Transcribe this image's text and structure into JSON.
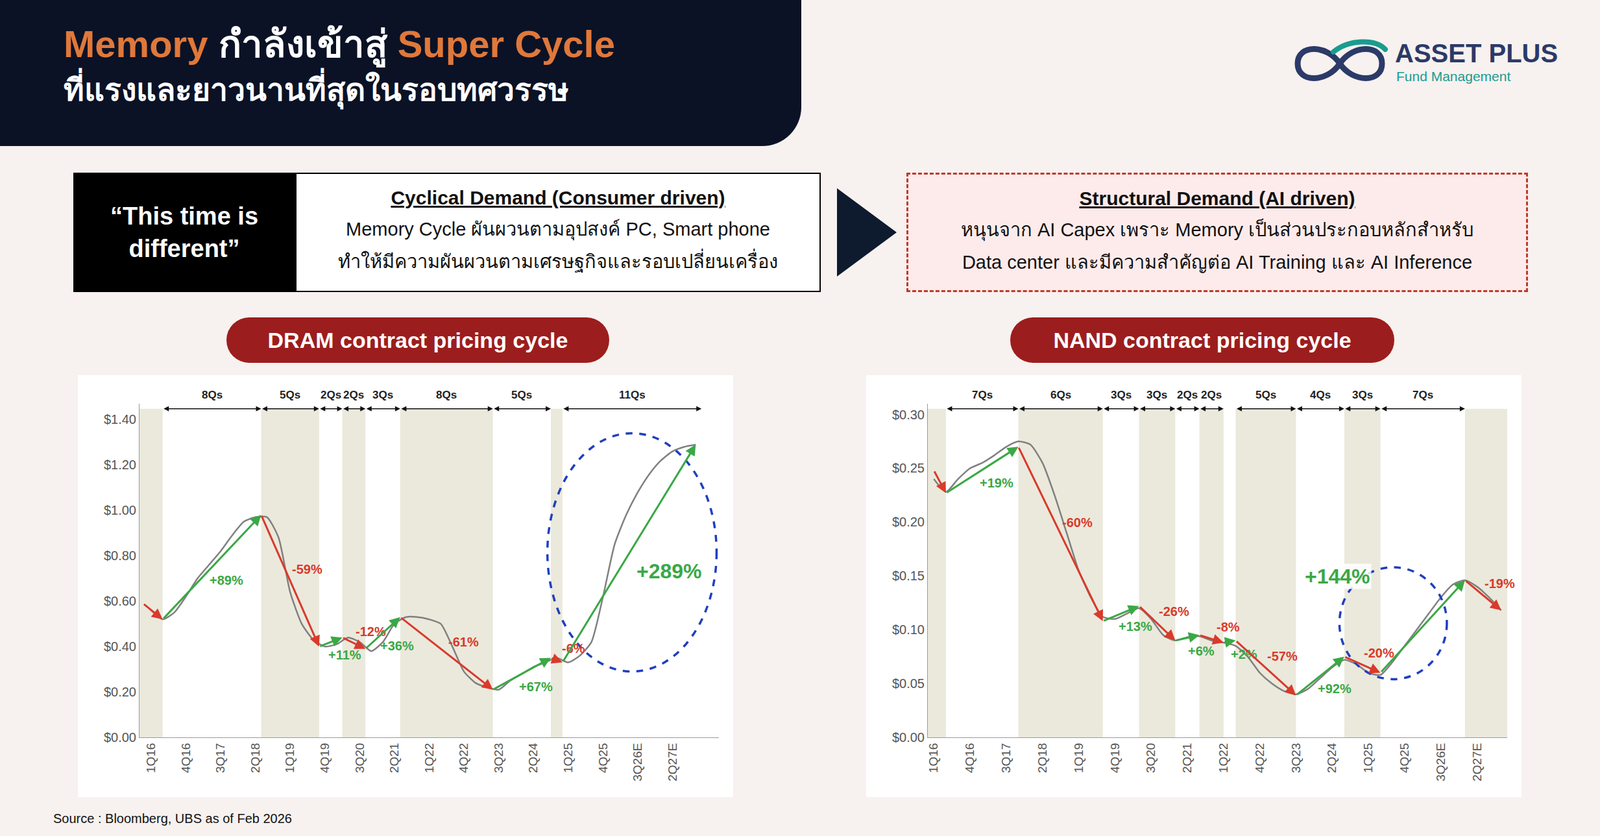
{
  "header": {
    "title_highlight_1": "Memory",
    "title_middle": "กำลังเข้าสู่",
    "title_highlight_2": "Super Cycle",
    "subtitle": "ที่แรงและยาวนานที่สุดในรอบทศวรรษ"
  },
  "logo": {
    "name": "ASSET PLUS",
    "tagline": "Fund Management"
  },
  "comparison": {
    "quote": "“This time is different”",
    "before": {
      "heading": "Cyclical Demand (Consumer driven)",
      "lines": [
        "Memory Cycle ผันผวนตามอุปสงค์ PC, Smart phone",
        "ทำให้มีความผันผวนตามเศรษฐกิจและรอบเปลี่ยนเครื่อง"
      ]
    },
    "after": {
      "heading": "Structural Demand (AI driven)",
      "lines": [
        "หนุนจาก AI Capex เพราะ Memory เป็นส่วนประกอบหลักสำหรับ",
        "Data center และมีความสำคัญต่อ AI Training และ AI Inference"
      ]
    }
  },
  "source": "Source : Bloomberg, UBS as of Feb 2026",
  "chart_data": [
    {
      "type": "line",
      "title": "DRAM contract pricing cycle",
      "categories": [
        "1Q16",
        null,
        null,
        "4Q16",
        null,
        null,
        "3Q17",
        null,
        null,
        "2Q18",
        null,
        null,
        "1Q19",
        null,
        null,
        "4Q19",
        null,
        null,
        "3Q20",
        null,
        null,
        "2Q21",
        null,
        null,
        "1Q22",
        null,
        null,
        "4Q22",
        null,
        null,
        "3Q23",
        null,
        null,
        "2Q24",
        null,
        null,
        "1Q25",
        null,
        null,
        "4Q25",
        null,
        null,
        "3Q26E",
        null,
        null,
        "2Q27E",
        null,
        null
      ],
      "series": [
        {
          "color": "#808080",
          "values": [
            0.56,
            0.52,
            0.55,
            0.62,
            0.7,
            0.76,
            0.82,
            0.89,
            0.95,
            0.97,
            0.97,
            0.88,
            0.64,
            0.5,
            0.43,
            0.4,
            0.41,
            0.44,
            0.42,
            0.38,
            0.42,
            0.5,
            0.53,
            0.53,
            0.52,
            0.5,
            0.4,
            0.29,
            0.24,
            0.22,
            0.21,
            0.25,
            0.28,
            0.31,
            0.33,
            0.35,
            0.33,
            0.36,
            0.42,
            0.62,
            0.85,
            0.98,
            1.08,
            1.16,
            1.22,
            1.26,
            1.28,
            1.29
          ]
        }
      ],
      "xlim": [
        -1,
        49
      ],
      "ylim": [
        0,
        1.47
      ],
      "yticks": [
        {
          "value": 0,
          "label": "$0.00"
        },
        {
          "value": 0.2,
          "label": "$0.20"
        },
        {
          "value": 0.4,
          "label": "$0.40"
        },
        {
          "value": 0.6,
          "label": "$0.60"
        },
        {
          "value": 0.8,
          "label": "$0.80"
        },
        {
          "value": 1.0,
          "label": "$1.00"
        },
        {
          "value": 1.2,
          "label": "$1.20"
        },
        {
          "value": 1.4,
          "label": "$1.40"
        }
      ],
      "grid": false,
      "arrows": [
        {
          "x0": -0.7,
          "y0": 0.59,
          "x1": 1,
          "y1": 0.52,
          "color": "#d93a2b"
        },
        {
          "x0": 1,
          "y0": 0.52,
          "x1": 9.5,
          "y1": 0.98,
          "color": "#3aa845",
          "label": "+89%"
        },
        {
          "x0": 9.5,
          "y0": 0.98,
          "x1": 14.5,
          "y1": 0.4,
          "color": "#d93a2b",
          "label": "-59%"
        },
        {
          "x0": 14.5,
          "y0": 0.4,
          "x1": 16.5,
          "y1": 0.44,
          "color": "#3aa845",
          "label": "+11%"
        },
        {
          "x0": 16.5,
          "y0": 0.44,
          "x1": 18.5,
          "y1": 0.39,
          "color": "#d93a2b",
          "label": "-12%"
        },
        {
          "x0": 18.5,
          "y0": 0.39,
          "x1": 21.5,
          "y1": 0.53,
          "color": "#3aa845",
          "label": "+36%"
        },
        {
          "x0": 21.5,
          "y0": 0.53,
          "x1": 29.5,
          "y1": 0.21,
          "color": "#d93a2b",
          "label": "-61%"
        },
        {
          "x0": 29.5,
          "y0": 0.21,
          "x1": 34.5,
          "y1": 0.35,
          "color": "#3aa845",
          "label": "+67%"
        },
        {
          "x0": 34.5,
          "y0": 0.35,
          "x1": 35.5,
          "y1": 0.33,
          "color": "#d93a2b",
          "label": "-6%"
        },
        {
          "x0": 35.5,
          "y0": 0.33,
          "x1": 47,
          "y1": 1.29,
          "color": "#3aa845"
        }
      ],
      "bands": [
        [
          -1,
          1
        ],
        [
          9.5,
          14.5
        ],
        [
          16.5,
          18.5
        ],
        [
          21.5,
          29.5
        ],
        [
          34.5,
          35.5
        ]
      ],
      "durations": [
        {
          "x0": 1,
          "x1": 9.5,
          "label": "8Qs"
        },
        {
          "x0": 9.5,
          "x1": 14.5,
          "label": "5Qs"
        },
        {
          "x0": 14.5,
          "x1": 16.5,
          "label": "2Qs"
        },
        {
          "x0": 16.5,
          "x1": 18.5,
          "label": "2Qs"
        },
        {
          "x0": 18.5,
          "x1": 21.5,
          "label": "3Qs"
        },
        {
          "x0": 21.5,
          "x1": 29.5,
          "label": "8Qs"
        },
        {
          "x0": 29.5,
          "x1": 34.5,
          "label": "5Qs"
        },
        {
          "x0": 35.5,
          "x1": 47.5,
          "label": "11Qs"
        }
      ],
      "highlight": {
        "x0": 34.2,
        "x1": 48.8,
        "y0": 0.29,
        "y1": 1.34,
        "color": "#1f3fbf",
        "label": "+289%",
        "label_color": "#3aa845"
      }
    },
    {
      "type": "line",
      "title": "NAND contract pricing cycle",
      "categories": [
        "1Q16",
        null,
        null,
        "4Q16",
        null,
        null,
        "3Q17",
        null,
        null,
        "2Q18",
        null,
        null,
        "1Q19",
        null,
        null,
        "4Q19",
        null,
        null,
        "3Q20",
        null,
        null,
        "2Q21",
        null,
        null,
        "1Q22",
        null,
        null,
        "4Q22",
        null,
        null,
        "3Q23",
        null,
        null,
        "2Q24",
        null,
        null,
        "1Q25",
        null,
        null,
        "4Q25",
        null,
        null,
        "3Q26E",
        null,
        null,
        "2Q27E",
        null,
        null
      ],
      "series": [
        {
          "color": "#808080",
          "values": [
            0.24,
            0.228,
            0.24,
            0.25,
            0.255,
            0.262,
            0.27,
            0.275,
            0.272,
            0.255,
            0.225,
            0.19,
            0.155,
            0.13,
            0.112,
            0.11,
            0.115,
            0.12,
            0.11,
            0.095,
            0.09,
            0.093,
            0.094,
            0.09,
            0.088,
            0.085,
            0.075,
            0.06,
            0.05,
            0.043,
            0.04,
            0.045,
            0.055,
            0.065,
            0.072,
            0.068,
            0.06,
            0.058,
            0.07,
            0.085,
            0.1,
            0.115,
            0.13,
            0.142,
            0.146,
            0.14,
            0.13,
            0.118
          ]
        }
      ],
      "xlim": [
        -0.5,
        47.5
      ],
      "ylim": [
        0,
        0.31
      ],
      "yticks": [
        {
          "value": 0,
          "label": "$0.00"
        },
        {
          "value": 0.05,
          "label": "$0.05"
        },
        {
          "value": 0.1,
          "label": "$0.10"
        },
        {
          "value": 0.15,
          "label": "$0.15"
        },
        {
          "value": 0.2,
          "label": "$0.20"
        },
        {
          "value": 0.25,
          "label": "$0.25"
        },
        {
          "value": 0.3,
          "label": "$0.30"
        }
      ],
      "grid": false,
      "arrows": [
        {
          "x0": 0,
          "y0": 0.248,
          "x1": 1,
          "y1": 0.227,
          "color": "#d93a2b"
        },
        {
          "x0": 1,
          "y0": 0.227,
          "x1": 7,
          "y1": 0.27,
          "color": "#3aa845",
          "label": "+19%"
        },
        {
          "x0": 7,
          "y0": 0.27,
          "x1": 14,
          "y1": 0.108,
          "color": "#d93a2b",
          "label": "-60%"
        },
        {
          "x0": 14,
          "y0": 0.108,
          "x1": 17,
          "y1": 0.122,
          "color": "#3aa845",
          "label": "+13%"
        },
        {
          "x0": 17,
          "y0": 0.122,
          "x1": 20,
          "y1": 0.09,
          "color": "#d93a2b",
          "label": "-26%"
        },
        {
          "x0": 20,
          "y0": 0.09,
          "x1": 22,
          "y1": 0.095,
          "color": "#3aa845",
          "label": "+6%"
        },
        {
          "x0": 22,
          "y0": 0.095,
          "x1": 24,
          "y1": 0.088,
          "color": "#d93a2b",
          "label": "-8%"
        },
        {
          "x0": 24,
          "y0": 0.088,
          "x1": 25,
          "y1": 0.09,
          "color": "#3aa845",
          "label": "+2%"
        },
        {
          "x0": 25,
          "y0": 0.09,
          "x1": 30,
          "y1": 0.039,
          "color": "#d93a2b",
          "label": "-57%"
        },
        {
          "x0": 30,
          "y0": 0.039,
          "x1": 34,
          "y1": 0.075,
          "color": "#3aa845",
          "label": "+92%"
        },
        {
          "x0": 34,
          "y0": 0.075,
          "x1": 37,
          "y1": 0.06,
          "color": "#d93a2b",
          "label": "-20%"
        },
        {
          "x0": 37,
          "y0": 0.06,
          "x1": 44,
          "y1": 0.146,
          "color": "#3aa845"
        },
        {
          "x0": 44,
          "y0": 0.146,
          "x1": 47,
          "y1": 0.118,
          "color": "#d93a2b",
          "label": "-19%"
        }
      ],
      "bands": [
        [
          -0.5,
          1
        ],
        [
          7,
          14
        ],
        [
          17,
          20
        ],
        [
          22,
          24
        ],
        [
          25,
          30
        ],
        [
          34,
          37
        ],
        [
          44,
          47.5
        ]
      ],
      "durations": [
        {
          "x0": 1,
          "x1": 7,
          "label": "7Qs"
        },
        {
          "x0": 7,
          "x1": 14,
          "label": "6Qs"
        },
        {
          "x0": 14,
          "x1": 17,
          "label": "3Qs"
        },
        {
          "x0": 17,
          "x1": 20,
          "label": "3Qs"
        },
        {
          "x0": 20,
          "x1": 22,
          "label": "2Qs"
        },
        {
          "x0": 22,
          "x1": 24,
          "label": "2Qs"
        },
        {
          "x0": 25,
          "x1": 30,
          "label": "5Qs"
        },
        {
          "x0": 30,
          "x1": 34,
          "label": "4Qs"
        },
        {
          "x0": 34,
          "x1": 37,
          "label": "3Qs"
        },
        {
          "x0": 37,
          "x1": 44,
          "label": "7Qs"
        }
      ],
      "highlight": {
        "x0": 33.6,
        "x1": 42.5,
        "y0": 0.054,
        "y1": 0.158,
        "color": "#1f3fbf",
        "label": "+144%",
        "label_color": "#3aa845"
      }
    }
  ]
}
